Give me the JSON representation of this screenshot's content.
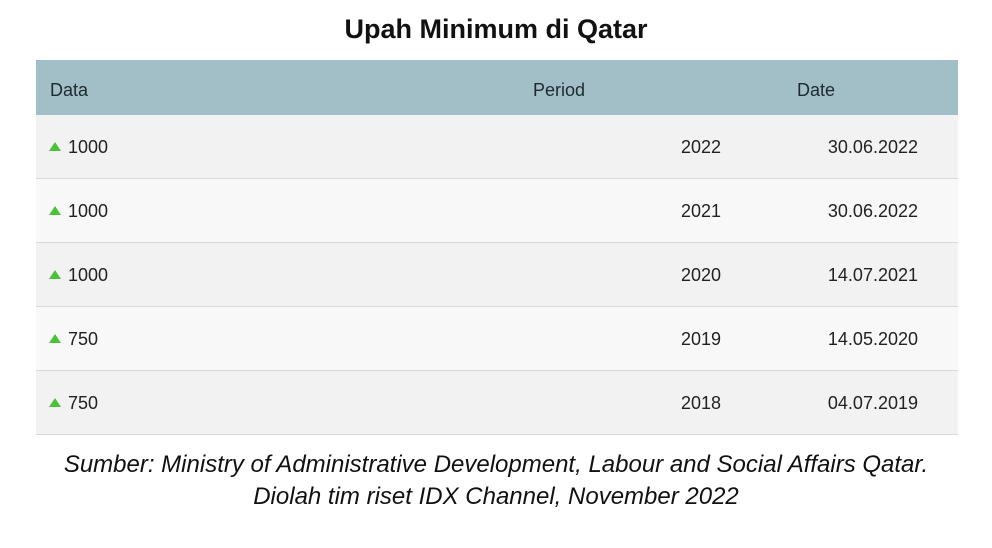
{
  "title": "Upah Minimum di Qatar",
  "table": {
    "headers": {
      "data": "Data",
      "period": "Period",
      "date": "Date"
    },
    "rows": [
      {
        "trend_icon": "up-triangle-icon",
        "data": "1000",
        "period": "2022",
        "date": "30.06.2022"
      },
      {
        "trend_icon": "up-triangle-icon",
        "data": "1000",
        "period": "2021",
        "date": "30.06.2022"
      },
      {
        "trend_icon": "up-triangle-icon",
        "data": "1000",
        "period": "2020",
        "date": "14.07.2021"
      },
      {
        "trend_icon": "up-triangle-icon",
        "data": "750",
        "period": "2019",
        "date": "14.05.2020"
      },
      {
        "trend_icon": "up-triangle-icon",
        "data": "750",
        "period": "2018",
        "date": "04.07.2019"
      }
    ]
  },
  "source_line1": "Sumber: Ministry of Administrative Development, Labour and Social Affairs Qatar.",
  "source_line2": "Diolah tim riset IDX Channel, November 2022",
  "colors": {
    "header_bg": "#a2bec6",
    "row_odd": "#f2f2f2",
    "row_even": "#f8f8f8",
    "trend_up": "#4bc23a"
  },
  "chart_data": {
    "type": "table",
    "title": "Upah Minimum di Qatar",
    "columns": [
      "Data",
      "Period",
      "Date"
    ],
    "rows": [
      [
        "1000",
        "2022",
        "30.06.2022"
      ],
      [
        "1000",
        "2021",
        "30.06.2022"
      ],
      [
        "1000",
        "2020",
        "14.07.2021"
      ],
      [
        "750",
        "2019",
        "14.05.2020"
      ],
      [
        "750",
        "2018",
        "04.07.2019"
      ]
    ]
  }
}
